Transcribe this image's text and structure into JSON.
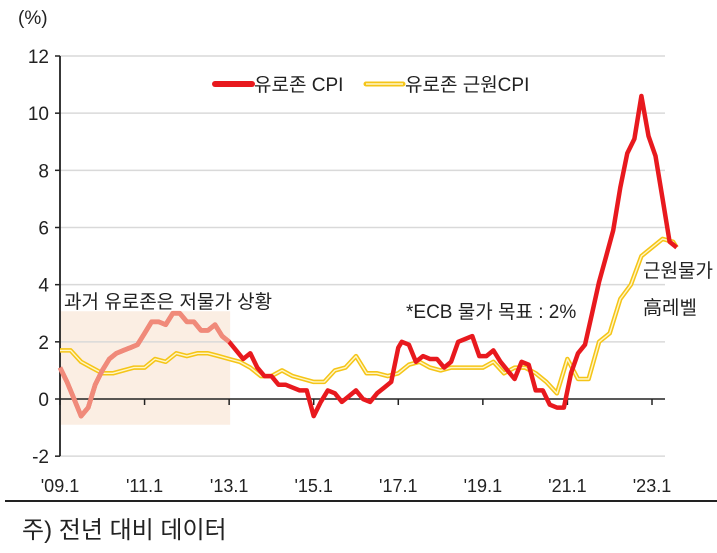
{
  "chart_data": {
    "type": "line",
    "title": "",
    "unit_label": "(%)",
    "xlabel": "",
    "ylabel": "%",
    "ylim": [
      -2,
      12
    ],
    "yticks": [
      12,
      10,
      8,
      6,
      4,
      2,
      0,
      -2
    ],
    "xticks": [
      "'09.1",
      "'11.1",
      "'13.1",
      "'15.1",
      "'17.1",
      "'19.1",
      "'21.1",
      "'23.1"
    ],
    "x_range": [
      "2009-01",
      "2023-08"
    ],
    "grid": "horizontal",
    "legend_position": "top-center",
    "series": [
      {
        "name": "유로존 CPI",
        "color": "#e8191e",
        "x": [
          "2009-01",
          "2009-03",
          "2009-05",
          "2009-07",
          "2009-09",
          "2009-11",
          "2010-01",
          "2010-03",
          "2010-05",
          "2010-07",
          "2010-09",
          "2010-11",
          "2011-01",
          "2011-03",
          "2011-05",
          "2011-07",
          "2011-09",
          "2011-11",
          "2012-01",
          "2012-03",
          "2012-05",
          "2012-07",
          "2012-09",
          "2012-11",
          "2013-01",
          "2013-03",
          "2013-05",
          "2013-07",
          "2013-09",
          "2013-11",
          "2014-01",
          "2014-03",
          "2014-05",
          "2014-07",
          "2014-09",
          "2014-11",
          "2015-01",
          "2015-03",
          "2015-05",
          "2015-07",
          "2015-09",
          "2015-11",
          "2016-01",
          "2016-03",
          "2016-05",
          "2016-07",
          "2016-09",
          "2016-11",
          "2017-01",
          "2017-02",
          "2017-04",
          "2017-06",
          "2017-08",
          "2017-10",
          "2017-12",
          "2018-02",
          "2018-04",
          "2018-06",
          "2018-08",
          "2018-10",
          "2018-12",
          "2019-02",
          "2019-04",
          "2019-06",
          "2019-08",
          "2019-10",
          "2019-12",
          "2020-02",
          "2020-04",
          "2020-06",
          "2020-08",
          "2020-10",
          "2020-12",
          "2021-02",
          "2021-04",
          "2021-06",
          "2021-08",
          "2021-10",
          "2021-12",
          "2022-02",
          "2022-04",
          "2022-06",
          "2022-08",
          "2022-10",
          "2022-12",
          "2023-02",
          "2023-04",
          "2023-06",
          "2023-08"
        ],
        "values": [
          1.1,
          0.6,
          0.0,
          -0.6,
          -0.3,
          0.5,
          1.0,
          1.4,
          1.6,
          1.7,
          1.8,
          1.9,
          2.3,
          2.7,
          2.7,
          2.6,
          3.0,
          3.0,
          2.7,
          2.7,
          2.4,
          2.4,
          2.6,
          2.2,
          2.0,
          1.7,
          1.4,
          1.6,
          1.1,
          0.8,
          0.8,
          0.5,
          0.5,
          0.4,
          0.3,
          0.3,
          -0.6,
          -0.1,
          0.3,
          0.2,
          -0.1,
          0.1,
          0.3,
          0.0,
          -0.1,
          0.2,
          0.4,
          0.6,
          1.8,
          2.0,
          1.9,
          1.3,
          1.5,
          1.4,
          1.4,
          1.1,
          1.3,
          2.0,
          2.1,
          2.2,
          1.5,
          1.5,
          1.7,
          1.3,
          1.0,
          0.7,
          1.3,
          1.2,
          0.3,
          0.3,
          -0.2,
          -0.3,
          -0.3,
          0.9,
          1.6,
          1.9,
          3.0,
          4.1,
          5.0,
          5.9,
          7.4,
          8.6,
          9.1,
          10.6,
          9.2,
          8.5,
          7.0,
          5.5,
          5.3
        ]
      },
      {
        "name": "유로존 근원CPI",
        "color": "#f5c518",
        "x": [
          "2009-01",
          "2009-04",
          "2009-07",
          "2009-10",
          "2010-01",
          "2010-04",
          "2010-07",
          "2010-10",
          "2011-01",
          "2011-04",
          "2011-07",
          "2011-10",
          "2012-01",
          "2012-04",
          "2012-07",
          "2012-10",
          "2013-01",
          "2013-04",
          "2013-07",
          "2013-10",
          "2014-01",
          "2014-04",
          "2014-07",
          "2014-10",
          "2015-01",
          "2015-04",
          "2015-07",
          "2015-10",
          "2016-01",
          "2016-04",
          "2016-07",
          "2016-10",
          "2017-01",
          "2017-04",
          "2017-07",
          "2017-10",
          "2018-01",
          "2018-04",
          "2018-07",
          "2018-10",
          "2019-01",
          "2019-04",
          "2019-07",
          "2019-10",
          "2020-01",
          "2020-04",
          "2020-07",
          "2020-10",
          "2021-01",
          "2021-04",
          "2021-07",
          "2021-10",
          "2022-01",
          "2022-04",
          "2022-07",
          "2022-10",
          "2023-01",
          "2023-04",
          "2023-07",
          "2023-08"
        ],
        "values": [
          1.7,
          1.7,
          1.3,
          1.1,
          0.9,
          0.9,
          1.0,
          1.1,
          1.1,
          1.4,
          1.3,
          1.6,
          1.5,
          1.6,
          1.6,
          1.5,
          1.4,
          1.3,
          1.1,
          0.8,
          0.8,
          1.0,
          0.8,
          0.7,
          0.6,
          0.6,
          1.0,
          1.1,
          1.5,
          0.9,
          0.9,
          0.8,
          0.9,
          1.2,
          1.3,
          1.1,
          1.0,
          1.1,
          1.1,
          1.1,
          1.1,
          1.3,
          0.9,
          1.1,
          1.1,
          0.9,
          0.6,
          0.2,
          1.4,
          0.7,
          0.7,
          2.0,
          2.3,
          3.5,
          4.0,
          5.0,
          5.3,
          5.6,
          5.5,
          5.3
        ]
      }
    ],
    "annotations": [
      {
        "text": "과거 유로존은 저물가 상황",
        "shaded_region": {
          "x_from": "2009-01",
          "x_to": "2013-01",
          "y_from": -0.9,
          "y_to": 3.0,
          "color": "#fbeee3"
        }
      },
      {
        "text": "*ECB 물가 목표 : 2%"
      },
      {
        "text": "근원물가 高레벨"
      }
    ]
  },
  "legend": {
    "items": [
      {
        "label": "유로존 CPI",
        "color": "#e8191e"
      },
      {
        "label": "유로존 근원CPI",
        "color": "#f5c518"
      }
    ]
  },
  "labels": {
    "unit": "(%)",
    "shaded_note": "과거 유로존은 저물가 상황",
    "ecb_target": "*ECB 물가 목표 : 2%",
    "core_note_line1": "근원물가",
    "core_note_line2": "高레벨",
    "footnote": "주) 전년 대비 데이터"
  },
  "colors": {
    "cpi": "#e8191e",
    "cpi_faded": "#f08a7a",
    "core": "#f5c518",
    "shade": "#fbeee3",
    "grid": "#d9d9d9",
    "axis": "#222222"
  }
}
